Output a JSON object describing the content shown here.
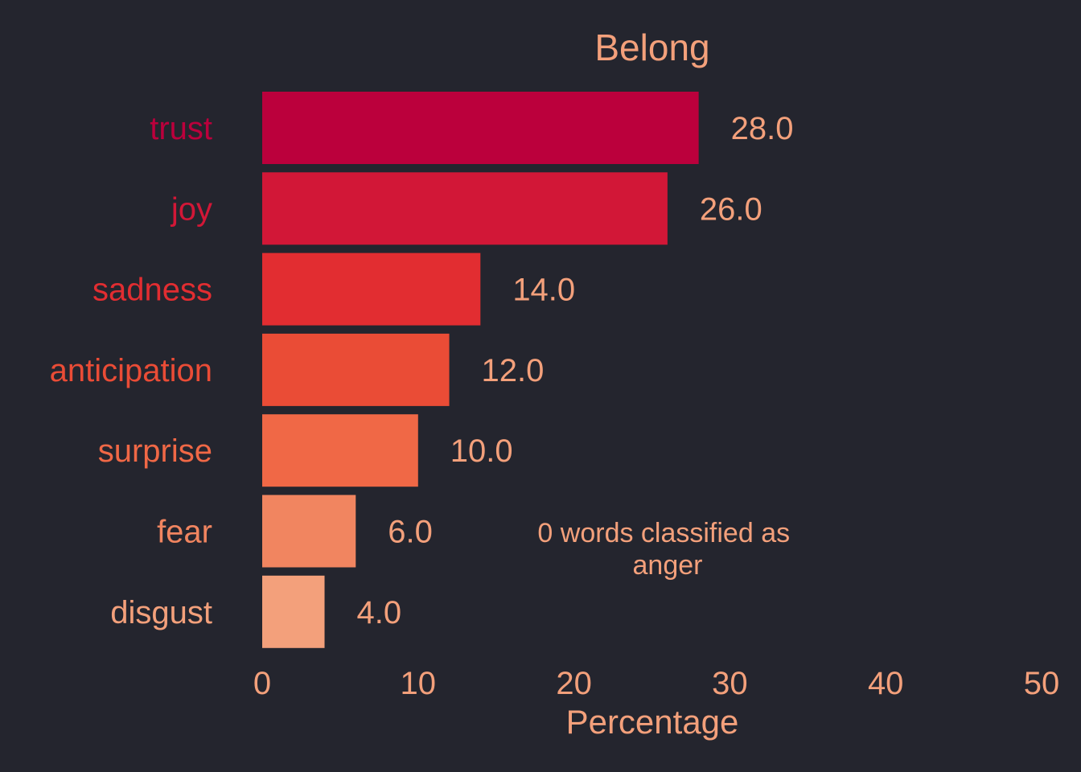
{
  "chart_data": {
    "type": "bar",
    "orientation": "horizontal",
    "title": "Belong",
    "xlabel": "Percentage",
    "ylabel": "",
    "xlim": [
      0,
      50
    ],
    "xticks": [
      "0",
      "10",
      "20",
      "30",
      "40",
      "50"
    ],
    "grid": false,
    "categories": [
      "trust",
      "joy",
      "sadness",
      "anticipation",
      "surprise",
      "fear",
      "disgust"
    ],
    "values": [
      28.0,
      26.0,
      14.0,
      12.0,
      10.0,
      6.0,
      4.0
    ],
    "value_labels": [
      "28.0",
      "26.0",
      "14.0",
      "12.0",
      "10.0",
      "6.0",
      "4.0"
    ],
    "colors": [
      "#bb003c",
      "#d21737",
      "#e22d31",
      "#ea4c36",
      "#f06846",
      "#f18560",
      "#f3a07b"
    ],
    "annotation": "0 words classified as anger",
    "text_color": "#f3a07b",
    "background": "#24252e"
  }
}
